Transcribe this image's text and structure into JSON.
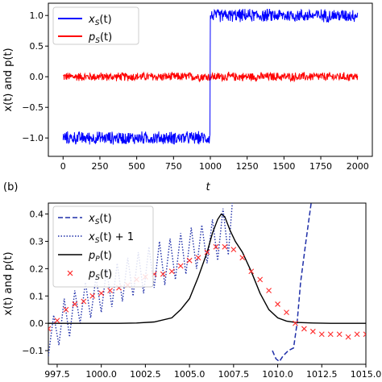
{
  "chart_data": [
    {
      "type": "line",
      "panel": "a",
      "xlabel": "t",
      "ylabel": "x(t) and p(t)",
      "xlim": [
        -100,
        2100
      ],
      "ylim": [
        -1.3,
        1.2
      ],
      "xticks": [
        0,
        250,
        500,
        750,
        1000,
        1250,
        1500,
        1750,
        2000
      ],
      "yticks": [
        -1.0,
        -0.5,
        0.0,
        0.5,
        1.0
      ],
      "xtick_labels": [
        "0",
        "250",
        "500",
        "750",
        "1000",
        "1250",
        "1500",
        "1750",
        "2000"
      ],
      "ytick_labels": [
        "−1.0",
        "−0.5",
        "0.0",
        "0.5",
        "1.0"
      ],
      "legend_position": "upper-left",
      "series": [
        {
          "name": "xS(t)",
          "legend_base": "x",
          "legend_sub": "S",
          "legend_arg": "(t)",
          "color": "#0000ff",
          "description_values": {
            "t_switch": 1000,
            "level_before": -1.0,
            "level_after": 1.0,
            "noise_amplitude": 0.12
          },
          "x": [
            0,
            100,
            200,
            300,
            400,
            500,
            600,
            700,
            800,
            900,
            995,
            1005,
            1100,
            1200,
            1300,
            1400,
            1500,
            1600,
            1700,
            1800,
            1900,
            2000
          ],
          "y": [
            -1.0,
            -1.0,
            -1.0,
            -1.0,
            -1.0,
            -1.0,
            -1.0,
            -1.0,
            -1.0,
            -1.0,
            -1.0,
            1.0,
            1.0,
            1.0,
            1.0,
            1.0,
            1.0,
            1.0,
            1.0,
            1.0,
            1.0,
            1.0
          ]
        },
        {
          "name": "pS(t)",
          "legend_base": "p",
          "legend_sub": "S",
          "legend_arg": "(t)",
          "color": "#ff0000",
          "description_values": {
            "noise_amplitude": 0.08
          },
          "x": [
            0,
            250,
            500,
            750,
            1000,
            1250,
            1500,
            1750,
            2000
          ],
          "y": [
            0.0,
            0.0,
            0.0,
            0.0,
            0.0,
            0.0,
            0.0,
            0.0,
            0.0
          ]
        }
      ]
    },
    {
      "type": "line",
      "panel": "b",
      "panel_label": "(b)",
      "xlabel": "",
      "ylabel": "x(t) and p(t)",
      "xlim": [
        997.0,
        1015.0
      ],
      "ylim": [
        -0.15,
        0.44
      ],
      "xticks": [
        997.5,
        1000.0,
        1002.5,
        1005.0,
        1007.5,
        1010.0,
        1012.5,
        1015.0
      ],
      "yticks": [
        -0.1,
        0.0,
        0.1,
        0.2,
        0.3,
        0.4
      ],
      "xtick_labels": [
        "997.5",
        "1000.0",
        "1002.5",
        "1005.0",
        "1007.5",
        "1010.0",
        "1012.5",
        "1015.0"
      ],
      "ytick_labels": [
        "−0.1",
        "0.0",
        "0.1",
        "0.2",
        "0.3",
        "0.4"
      ],
      "legend_position": "upper-left",
      "series": [
        {
          "name": "xS(t)",
          "legend_base": "x",
          "legend_sub": "S",
          "legend_arg": "(t)",
          "style": "dashed",
          "color": "#1f2fa8",
          "x": [
            1009.7,
            1009.9,
            1010.1,
            1010.3,
            1010.6,
            1010.9,
            1011.1,
            1011.3,
            1011.6,
            1011.9,
            1012.2
          ],
          "y": [
            -0.1,
            -0.13,
            -0.14,
            -0.12,
            -0.1,
            -0.09,
            0.0,
            0.15,
            0.3,
            0.44,
            0.6
          ]
        },
        {
          "name": "xS(t) + 1",
          "legend_base": "x",
          "legend_sub": "S",
          "legend_arg": "(t) + 1",
          "style": "dotted",
          "color": "#1f2fa8",
          "x": [
            997.0,
            997.3,
            997.6,
            997.9,
            998.2,
            998.5,
            998.8,
            999.1,
            999.4,
            999.7,
            1000.0,
            1000.3,
            1000.6,
            1000.9,
            1001.2,
            1001.5,
            1001.8,
            1002.1,
            1002.4,
            1002.7,
            1003.0,
            1003.3,
            1003.6,
            1003.9,
            1004.2,
            1004.5,
            1004.8,
            1005.1,
            1005.4,
            1005.7,
            1006.0,
            1006.3,
            1006.6,
            1006.9,
            1007.2,
            1007.5
          ],
          "y": [
            -0.12,
            0.03,
            -0.08,
            0.09,
            -0.05,
            0.12,
            0.0,
            0.15,
            0.02,
            0.17,
            0.04,
            0.2,
            0.06,
            0.22,
            0.08,
            0.24,
            0.1,
            0.26,
            0.11,
            0.28,
            0.13,
            0.3,
            0.14,
            0.31,
            0.16,
            0.33,
            0.18,
            0.35,
            0.2,
            0.36,
            0.22,
            0.38,
            0.23,
            0.42,
            0.25,
            0.5
          ]
        },
        {
          "name": "pP(t)",
          "legend_base": "p",
          "legend_sub": "P",
          "legend_arg": "(t)",
          "style": "solid",
          "color": "#000000",
          "x": [
            997.0,
            998.0,
            999.0,
            1000.0,
            1001.0,
            1002.0,
            1003.0,
            1004.0,
            1004.5,
            1005.0,
            1005.5,
            1006.0,
            1006.3,
            1006.6,
            1006.8,
            1007.0,
            1007.3,
            1007.6,
            1008.0,
            1008.5,
            1009.0,
            1009.5,
            1010.0,
            1010.5,
            1011.0,
            1012.0,
            1013.0,
            1014.0,
            1015.0
          ],
          "y": [
            0.0,
            0.0,
            0.0,
            0.0,
            0.0,
            0.001,
            0.005,
            0.02,
            0.05,
            0.09,
            0.17,
            0.26,
            0.33,
            0.38,
            0.4,
            0.39,
            0.34,
            0.3,
            0.26,
            0.19,
            0.11,
            0.05,
            0.02,
            0.008,
            0.003,
            0.001,
            0.0,
            0.0,
            0.0
          ]
        },
        {
          "name": "pS(t)",
          "legend_base": "p",
          "legend_sub": "S",
          "legend_arg": "(t)",
          "style": "markers",
          "marker": "x",
          "color": "#ff2a2a",
          "x": [
            997.0,
            997.5,
            998.0,
            998.5,
            999.0,
            999.5,
            1000.0,
            1000.5,
            1001.0,
            1001.5,
            1002.0,
            1002.5,
            1003.0,
            1003.5,
            1004.0,
            1004.5,
            1005.0,
            1005.5,
            1006.0,
            1006.5,
            1007.0,
            1007.5,
            1008.0,
            1008.5,
            1009.0,
            1009.5,
            1010.0,
            1010.5,
            1011.0,
            1011.5,
            1012.0,
            1012.5,
            1013.0,
            1013.5,
            1014.0,
            1014.5,
            1015.0
          ],
          "y": [
            -0.02,
            0.01,
            0.05,
            0.07,
            0.08,
            0.1,
            0.11,
            0.12,
            0.13,
            0.14,
            0.16,
            0.17,
            0.18,
            0.18,
            0.19,
            0.21,
            0.23,
            0.24,
            0.26,
            0.28,
            0.28,
            0.27,
            0.24,
            0.19,
            0.16,
            0.12,
            0.07,
            0.04,
            0.0,
            -0.02,
            -0.03,
            -0.04,
            -0.04,
            -0.04,
            -0.05,
            -0.04,
            -0.04
          ]
        }
      ]
    }
  ]
}
